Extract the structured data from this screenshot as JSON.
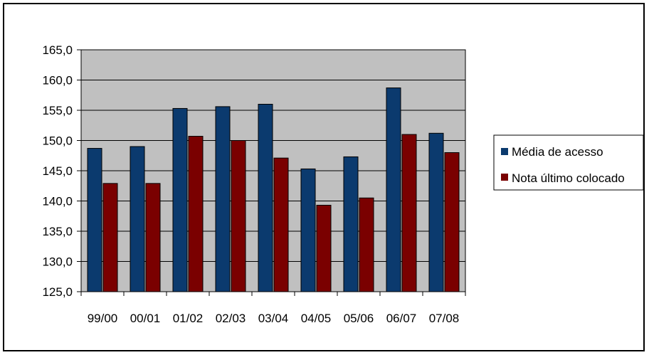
{
  "chart_data": {
    "type": "bar",
    "title": "",
    "xlabel": "",
    "ylabel": "",
    "categories": [
      "99/00",
      "00/01",
      "01/02",
      "02/03",
      "03/04",
      "04/05",
      "05/06",
      "06/07",
      "07/08"
    ],
    "series": [
      {
        "name": "Média de acesso",
        "color": "#0b3a6e",
        "values": [
          148.7,
          149.0,
          155.3,
          155.6,
          156.0,
          145.3,
          147.3,
          158.7,
          151.2
        ]
      },
      {
        "name": "Nota último colocado",
        "color": "#7a0000",
        "values": [
          142.9,
          142.9,
          150.7,
          150.0,
          147.1,
          139.3,
          140.5,
          151.0,
          148.0
        ]
      }
    ],
    "ylim": [
      125,
      165
    ],
    "yticks": [
      "125,0",
      "130,0",
      "135,0",
      "140,0",
      "145,0",
      "150,0",
      "155,0",
      "160,0",
      "165,0"
    ],
    "ytick_values": [
      125,
      130,
      135,
      140,
      145,
      150,
      155,
      160,
      165
    ],
    "grid": true,
    "plot_background": "#c0c0c0",
    "legend_position": "right"
  }
}
